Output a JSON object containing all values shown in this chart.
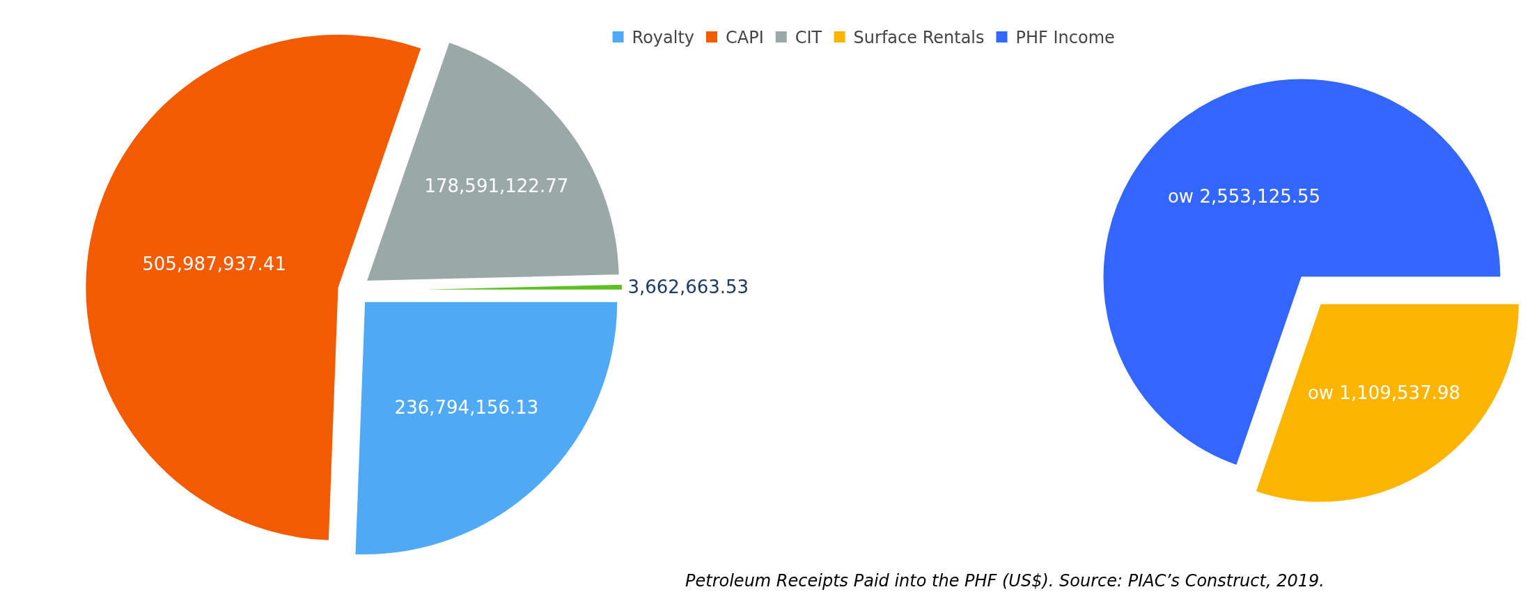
{
  "chart_data": [
    {
      "type": "pie",
      "categories": [
        "Royalty",
        "CAPI",
        "CIT",
        null
      ],
      "values": [
        236794156.13,
        505987937.41,
        178591122.77,
        3662663.53
      ],
      "colors": [
        "#4fa9f5",
        "#f25b00",
        "#9aa9a8",
        "#5cc021"
      ],
      "value_labels": [
        "236,794,156.13",
        "505,987,937.41",
        "178,591,122.77",
        "3,662,663.53"
      ],
      "legend": "top"
    },
    {
      "type": "pie",
      "categories": [
        "Surface Rentals",
        "PHF Income"
      ],
      "values": [
        1109537.98,
        2553125.55
      ],
      "colors": [
        "#fbb500",
        "#3366ff"
      ],
      "value_labels": [
        "ow 1,109,537.98",
        "ow 2,553,125.55"
      ],
      "legend": "top",
      "annotations": [
        "Petroleum Receipts Paid into the PHF (US$). Source: PIAC’s Construct, 2019."
      ]
    }
  ]
}
